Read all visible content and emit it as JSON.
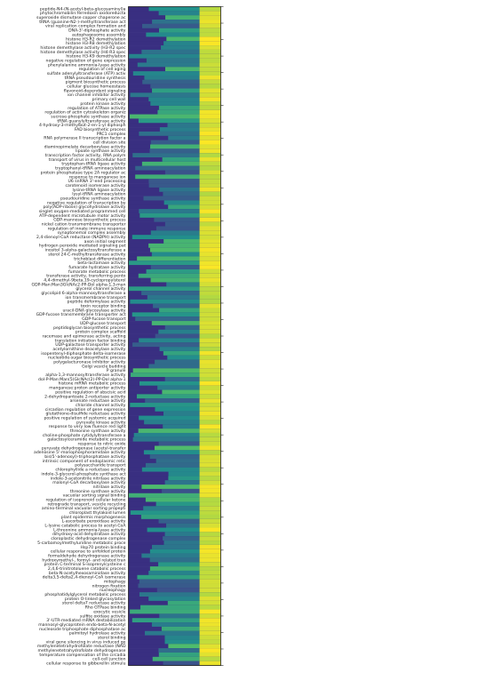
{
  "chart_data": {
    "type": "heatmap",
    "title": "",
    "xlabel": "",
    "ylabel": "",
    "row_labels": [
      "peptide-N4-(N-acetyl-beta-glucosaminyl)a",
      "phytochromobilin:ferredoxin oxidoreducta",
      "superoxide dismutase copper chaperone ac",
      "tRNA (guanine-N2-)-methyltransferase act",
      "viral replication complex formation and",
      "DNA-3'-diphosphate activity",
      "autophagosome assembly",
      "histone H3-R2 demethylation",
      "histone H3-R8 demethylation",
      "histone demethylase activity (H3-R2 spec",
      "histone demethylase activity (H4-R3 spec",
      "histone H3-K9 demethylation",
      "negative regulation of gene expression",
      "phenylalanine ammonia-lyase activity",
      "regulation of cell aging",
      "sulfate adenylyltransferase (ATP) activ",
      "tRNA pseudouridine synthesis",
      "pigment biosynthetic process",
      "cellular glucose homeostasis",
      "flavonoid-dependent signaling",
      "ion channel inhibitor activity",
      "primary cell wall",
      "protein kinase activity",
      "regulation of ATPase activity",
      "regulation of actin cytoskeleton organiz",
      "sucrose-phosphate synthase activity",
      "tRNA guanylyltransferase activity",
      "4-hydroxy-3-methylbut-2-en-1-yl diphosph",
      "FAD biosynthetic process",
      "PRC1 complex",
      "RNA polymerase II transcription factor a",
      "cell division site",
      "diaminopimelate decarboxylase activity",
      "lipoate synthase activity",
      "transcription factor activity, RNA polym",
      "transport of virus in multicellular host",
      "tryptophan-tRNA ligase activity",
      "tryptophanyl-tRNA aminoacylation",
      "protein phosphatase type 2A regulator ac",
      "response to manganese ion",
      "U6 snRNA 3'-end processing",
      "carotenoid isomerase activity",
      "lysine-tRNA ligase activity",
      "lysyl-tRNA aminoacylation",
      "pseudouridine synthase activity",
      "negative regulation of transcription by",
      "poly(ADP-ribose) glycohydrolase activity",
      "singlet oxygen-mediated programmed cell",
      "ATP-dependent microtubule motor activity",
      "GDP-mannose biosynthetic process",
      "nickel cation transmembrane transporter",
      "regulation of innate immune response",
      "synaptonemal complex assembly",
      "2,4-dienoyl-CoA reductase (NADPH) activity",
      "axon initial segment",
      "hydrogen peroxide mediated signaling pat",
      "inositol 3-alpha-galactosyltransferase a",
      "sterol 24-C-methyltransferase activity",
      "trichoblast differentiation",
      "beta-lactamase activity",
      "fumarate hydratase activity",
      "fumarate metabolic process",
      "transferase activity, transferring pento",
      "4,4-dimethyl-9beta,19-cyclopropylsterol",
      "GDP-Man:Man3GlcNAc2-PP-Dol alpha-1,3-man",
      "glycerol channel activity",
      "glycolipid 6-alpha-mannosyltransferase a",
      "ion transmembrane transport",
      "peptide deformylase activity",
      "toxin receptor binding",
      "uracil-DNA glycosylase activity",
      "GDP-fucose transmembrane transporter act",
      "GDP-fucose transport",
      "UDP-glucose transport",
      "peptidoglycan biosynthetic process",
      "protein complex scaffold",
      "racemase and epimerase activity, acting",
      "translation initiation factor binding",
      "UDP-galactose transporter activity",
      "acetylornithine deacetylase activity",
      "isopentenyl-diphosphate delta-isomerase",
      "nucleotide-sugar biosynthetic process",
      "polygalacturonase inhibitor activity",
      "Golgi vesicle budding",
      "P granule",
      "alpha-1,3-mannosyltransferase activity",
      "dol-P-Man:Man(5)GlcNAc(2)-PP-Dol alpha-1",
      "histone mRNA metabolic process",
      "manganese:proton antiporter activity",
      "positive regulation of abscisic acid",
      "2-dehydropantoate 2-reductase activity",
      "arsenate reductase activity",
      "chloride channel activity",
      "circadian regulation of gene expression",
      "glutathione-disulfide reductase activity",
      "positive regulation of systemic acquired",
      "pyruvate kinase activity",
      "response to very low fluence red light",
      "threonine synthase activity",
      "choline-phosphate cytidylyltransferase a",
      "galactosylceramide metabolic process",
      "response to nitric oxide",
      "pyruvate dehydrogenase (acetyl-transfer",
      "adenosine 5'-monophosphoramidase activity",
      "bis(5'-adenosyl)-triphosphatase activity",
      "intrinsic component of endoplasmic retic",
      "polysaccharide transport",
      "chlorophyllide a reductase activity",
      "indole-3-glycerol-phosphate synthase act",
      "indole-3-acetonitrile nitrilase activity",
      "malonyl-CoA decarboxylase activity",
      "nitrilase activity",
      "threonine synthase activity",
      "vacuolar sorting signal binding",
      "regulation of isoprenoid cellular ketone",
      "retrograde transport, vesicle recycling",
      "amino-terminal vacuolar sorting propepti",
      "chloroplast thylakoid lumen",
      "plant epidermis morphogenesis",
      "L-ascorbate peroxidase activity",
      "L-lysine catabolic process to acetyl-CoA",
      "L-threonine ammonia-lyase activity",
      "dihydroxy-acid dehydratase activity",
      "cloroplastic dehydrogenase complex",
      "5-carbamoylmethyluridine metabolic proce",
      "Hsp70 protein binding",
      "cellular response to unfolded protein",
      "formaldehyde dehydrogenase activity",
      "hydroxymethyl-, formyl- and related tran",
      "protein C-terminal S-isoprenylcysteine c",
      "2,4,6-trinitrotoluene catabolic process",
      "beta-N-acetylhexosaminidase activity",
      "delta3,5-delta2,4-dienoyl-CoA isomerase",
      "mitophagy",
      "nitrogen fixation",
      "nucleophagy",
      "phosphatidylglycerol metabolic process",
      "protein O-linked glycosylation",
      "sterol delta7 reductase activity",
      "Rho GTPase binding",
      "exocytic vesicle",
      "sulfite oxidase activity",
      "3'-UTR-mediated mRNA destabilization",
      "mannosyl-glycoprotein endo-beta-N-acetyl",
      "nucleoside triphosphate diphosphatase ac",
      "palmitoyl hydrolase activity",
      "sterol binding",
      "viral gene silencing in virus induced ge",
      "methylenetetrahydrofolate reductase (NAD",
      "methylenetetrahydrofolate dehydrogenase",
      "temperature compensation of the circadia",
      "cell-cell junction",
      "cellular response to gibberellin stimulu"
    ],
    "color_scale": "viridis",
    "value_range": [
      0,
      1
    ],
    "n_columns": 9,
    "scale_ticks": 40
  }
}
